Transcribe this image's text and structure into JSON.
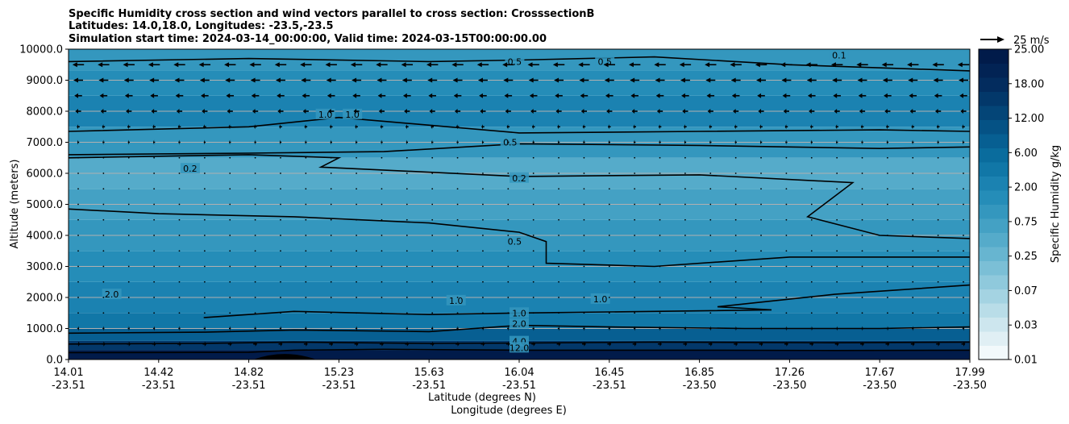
{
  "chart_data": {
    "type": "contour",
    "title": {
      "line1": "Specific Humidity cross section and wind vectors parallel to cross section: CrosssectionB",
      "line2": "Latitudes: 14.0,18.0, Longitudes: -23.5,-23.5",
      "line3": "Simulation start time: 2024-03-14_00:00:00, Valid time: 2024-03-15T00:00:00.00"
    },
    "ylabel": "Altitude (meters)",
    "xlabel_lat": "Latitude (degrees N)",
    "xlabel_lon": "Longitude (degrees E)",
    "ylim": [
      0,
      10000
    ],
    "y_ticks": [
      "0.0",
      "1000.0",
      "2000.0",
      "3000.0",
      "4000.0",
      "5000.0",
      "6000.0",
      "7000.0",
      "8000.0",
      "9000.0",
      "10000.0"
    ],
    "x_ticks": [
      {
        "lat": "14.01",
        "lon": "-23.51"
      },
      {
        "lat": "14.42",
        "lon": "-23.51"
      },
      {
        "lat": "14.82",
        "lon": "-23.51"
      },
      {
        "lat": "15.23",
        "lon": "-23.51"
      },
      {
        "lat": "15.63",
        "lon": "-23.51"
      },
      {
        "lat": "16.04",
        "lon": "-23.51"
      },
      {
        "lat": "16.45",
        "lon": "-23.51"
      },
      {
        "lat": "16.85",
        "lon": "-23.50"
      },
      {
        "lat": "17.26",
        "lon": "-23.50"
      },
      {
        "lat": "17.67",
        "lon": "-23.50"
      },
      {
        "lat": "17.99",
        "lon": "-23.50"
      }
    ],
    "colorbar": {
      "label": "Specific Humidity g/kg",
      "ticks": [
        "0.01",
        "0.03",
        "0.07",
        "0.25",
        "0.75",
        "2.00",
        "6.00",
        "12.00",
        "18.00",
        "25.00"
      ],
      "colors": [
        "#f2f9fb",
        "#e0eff4",
        "#cde6ee",
        "#b9dde8",
        "#a4d3e2",
        "#8fc9dc",
        "#7bbfd6",
        "#67b5d0",
        "#55abca",
        "#44a1c4",
        "#3497be",
        "#258db8",
        "#1b82b1",
        "#1177a7",
        "#0a6c9d",
        "#075f92",
        "#055285",
        "#044577",
        "#03386a",
        "#032c5e",
        "#022354",
        "#011b4a"
      ]
    },
    "reference_vector": {
      "label": "25 m/s",
      "value": 25
    },
    "humidity_bands": [
      {
        "from_alt": 0,
        "to_alt": 300,
        "level": 21
      },
      {
        "from_alt": 300,
        "to_alt": 600,
        "level": 18
      },
      {
        "from_alt": 600,
        "to_alt": 1000,
        "level": 15
      },
      {
        "from_alt": 1000,
        "to_alt": 1500,
        "level": 13
      },
      {
        "from_alt": 1500,
        "to_alt": 2500,
        "level": 12
      },
      {
        "from_alt": 2500,
        "to_alt": 3500,
        "level": 11
      },
      {
        "from_alt": 3500,
        "to_alt": 4500,
        "level": 10
      },
      {
        "from_alt": 4500,
        "to_alt": 5500,
        "level": 9
      },
      {
        "from_alt": 5500,
        "to_alt": 6500,
        "level": 8
      },
      {
        "from_alt": 6500,
        "to_alt": 7500,
        "level": 10
      },
      {
        "from_alt": 7500,
        "to_alt": 8500,
        "level": 12
      },
      {
        "from_alt": 8500,
        "to_alt": 9300,
        "level": 11
      },
      {
        "from_alt": 9300,
        "to_alt": 10000,
        "level": 10
      }
    ],
    "contours": [
      {
        "level": "12.0",
        "points": [
          [
            0,
            220
          ],
          [
            0.2,
            230
          ],
          [
            0.25,
            300
          ],
          [
            0.35,
            330
          ],
          [
            0.5,
            300
          ],
          [
            0.7,
            300
          ],
          [
            0.85,
            290
          ],
          [
            1,
            300
          ]
        ]
      },
      {
        "level": "4.0",
        "points": [
          [
            0,
            500
          ],
          [
            0.15,
            520
          ],
          [
            0.25,
            560
          ],
          [
            0.4,
            520
          ],
          [
            0.5,
            530
          ],
          [
            0.65,
            560
          ],
          [
            0.85,
            540
          ],
          [
            1,
            560
          ]
        ]
      },
      {
        "level": "2.0",
        "points": [
          [
            0,
            850
          ],
          [
            0.15,
            880
          ],
          [
            0.25,
            950
          ],
          [
            0.4,
            900
          ],
          [
            0.5,
            1100
          ],
          [
            0.6,
            1050
          ],
          [
            0.75,
            1000
          ],
          [
            0.9,
            1000
          ],
          [
            1,
            1050
          ]
        ]
      },
      {
        "level": "1.0",
        "points": [
          [
            0.15,
            1350
          ],
          [
            0.25,
            1550
          ],
          [
            0.4,
            1450
          ],
          [
            0.5,
            1500
          ],
          [
            0.65,
            1550
          ],
          [
            0.78,
            1600
          ],
          [
            0.72,
            1700
          ],
          [
            0.85,
            2100
          ],
          [
            1,
            2400
          ]
        ]
      },
      {
        "level": "0.5",
        "points": [
          [
            0,
            4850
          ],
          [
            0.1,
            4700
          ],
          [
            0.25,
            4600
          ],
          [
            0.4,
            4400
          ],
          [
            0.5,
            4100
          ],
          [
            0.53,
            3800
          ],
          [
            0.53,
            3100
          ],
          [
            0.65,
            3000
          ],
          [
            0.8,
            3300
          ],
          [
            1,
            3300
          ]
        ]
      },
      {
        "level": "0.2",
        "points": [
          [
            0,
            6500
          ],
          [
            0.2,
            6600
          ],
          [
            0.3,
            6500
          ],
          [
            0.28,
            6200
          ],
          [
            0.5,
            5900
          ],
          [
            0.7,
            5950
          ],
          [
            0.87,
            5700
          ],
          [
            0.82,
            4600
          ],
          [
            0.9,
            4000
          ],
          [
            1,
            3900
          ]
        ]
      },
      {
        "level": "0.5",
        "points": [
          [
            0,
            6600
          ],
          [
            0.2,
            6650
          ],
          [
            0.35,
            6700
          ],
          [
            0.5,
            6950
          ],
          [
            0.7,
            6900
          ],
          [
            0.9,
            6800
          ],
          [
            1,
            6850
          ]
        ]
      },
      {
        "level": "1.0",
        "points": [
          [
            0,
            7350
          ],
          [
            0.2,
            7500
          ],
          [
            0.3,
            7800
          ],
          [
            0.5,
            7300
          ],
          [
            0.7,
            7350
          ],
          [
            0.9,
            7400
          ],
          [
            1,
            7350
          ]
        ]
      },
      {
        "level": "0.5",
        "points": [
          [
            0,
            9600
          ],
          [
            0.2,
            9700
          ],
          [
            0.4,
            9600
          ],
          [
            0.5,
            9650
          ],
          [
            0.65,
            9750
          ],
          [
            0.8,
            9500
          ],
          [
            1,
            9300
          ]
        ]
      }
    ],
    "contour_labels": [
      {
        "text": "0.5",
        "x": 0.495,
        "alt": 9600
      },
      {
        "text": "0.5",
        "x": 0.595,
        "alt": 9600
      },
      {
        "text": "0.1",
        "x": 0.855,
        "alt": 9800
      },
      {
        "text": "1.0",
        "x": 0.285,
        "alt": 7900
      },
      {
        "text": "1.0",
        "x": 0.315,
        "alt": 7900
      },
      {
        "text": "0.5",
        "x": 0.49,
        "alt": 7000
      },
      {
        "text": "0.2",
        "x": 0.135,
        "alt": 6150
      },
      {
        "text": "0.2",
        "x": 0.5,
        "alt": 5850
      },
      {
        "text": "0.5",
        "x": 0.495,
        "alt": 3800
      },
      {
        "text": "2.0",
        "x": 0.048,
        "alt": 2100
      },
      {
        "text": "1.0",
        "x": 0.43,
        "alt": 1900
      },
      {
        "text": "1.0",
        "x": 0.59,
        "alt": 1950
      },
      {
        "text": "1.0",
        "x": 0.5,
        "alt": 1500
      },
      {
        "text": "2.0",
        "x": 0.5,
        "alt": 1150
      },
      {
        "text": "4.0",
        "x": 0.5,
        "alt": 580
      },
      {
        "text": "12.0",
        "x": 0.5,
        "alt": 380
      }
    ],
    "wind_levels": [
      {
        "alt": 9500,
        "u": -12
      },
      {
        "alt": 9000,
        "u": -10
      },
      {
        "alt": 8500,
        "u": -8
      },
      {
        "alt": 8000,
        "u": -6
      },
      {
        "alt": 7500,
        "u": -3
      },
      {
        "alt": 7000,
        "u": -2
      },
      {
        "alt": 6500,
        "u": -1
      },
      {
        "alt": 6000,
        "u": -0.5
      },
      {
        "alt": 5500,
        "u": -0.5
      },
      {
        "alt": 5000,
        "u": -0.3
      },
      {
        "alt": 4500,
        "u": -0.3
      },
      {
        "alt": 4000,
        "u": 0.3
      },
      {
        "alt": 3500,
        "u": 0.3
      },
      {
        "alt": 3000,
        "u": 0.3
      },
      {
        "alt": 2500,
        "u": 0.3
      },
      {
        "alt": 2000,
        "u": 0.5
      },
      {
        "alt": 1500,
        "u": 0.8
      },
      {
        "alt": 1000,
        "u": 2
      },
      {
        "alt": 500,
        "u": 4
      }
    ],
    "terrain": {
      "center": 0.24,
      "width": 0.035,
      "height": 200
    }
  }
}
